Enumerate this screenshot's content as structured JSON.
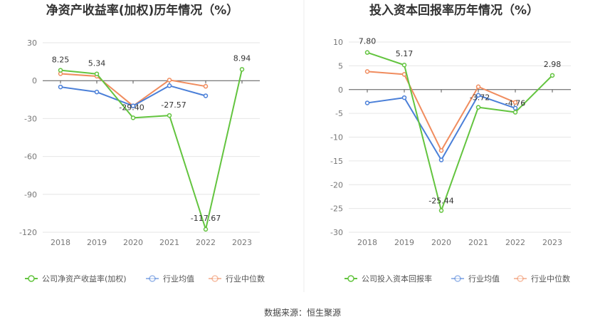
{
  "chart_data": [
    {
      "type": "line",
      "title": "净资产收益率(加权)历年情况（%）",
      "categories": [
        "2018",
        "2019",
        "2020",
        "2021",
        "2022",
        "2023"
      ],
      "ylim": [
        -120,
        30
      ],
      "yticks": [
        30,
        0,
        -30,
        -60,
        -90,
        -120
      ],
      "grid": true,
      "legend_position": "bottom",
      "series": [
        {
          "name": "公司净资产收益率(加权)",
          "color": "#63c43f",
          "values": [
            8.25,
            5.34,
            -29.4,
            -27.57,
            -117.67,
            8.94
          ],
          "labels": [
            "8.25",
            "5.34",
            "-29.40",
            "-27.57",
            "-117.67",
            "8.94"
          ]
        },
        {
          "name": "行业均值",
          "color": "#4a7fd8",
          "values": [
            -5,
            -9,
            -20,
            -4,
            -12,
            null
          ]
        },
        {
          "name": "行业中位数",
          "color": "#f08c5e",
          "values": [
            5.5,
            3.5,
            -20,
            0.5,
            -4.5,
            null
          ]
        }
      ]
    },
    {
      "type": "line",
      "title": "投入资本回报率历年情况（%）",
      "categories": [
        "2018",
        "2019",
        "2020",
        "2021",
        "2022",
        "2023"
      ],
      "ylim": [
        -30,
        10
      ],
      "yticks": [
        10,
        5,
        0,
        -5,
        -10,
        -15,
        -20,
        -25,
        -30
      ],
      "grid": true,
      "legend_position": "bottom",
      "series": [
        {
          "name": "公司投入资本回报率",
          "color": "#63c43f",
          "values": [
            7.8,
            5.17,
            -25.44,
            -3.72,
            -4.76,
            2.98
          ],
          "labels": [
            "7.80",
            "5.17",
            "-25.44",
            "-3.72",
            "-4.76",
            "2.98"
          ]
        },
        {
          "name": "行业均值",
          "color": "#4a7fd8",
          "values": [
            -2.8,
            -1.7,
            -14.8,
            -1.2,
            -3.9,
            null
          ]
        },
        {
          "name": "行业中位数",
          "color": "#f08c5e",
          "values": [
            3.8,
            3.2,
            -12.8,
            0.6,
            -2.7,
            null
          ]
        }
      ]
    }
  ],
  "footer": {
    "source": "数据来源：恒生聚源"
  }
}
